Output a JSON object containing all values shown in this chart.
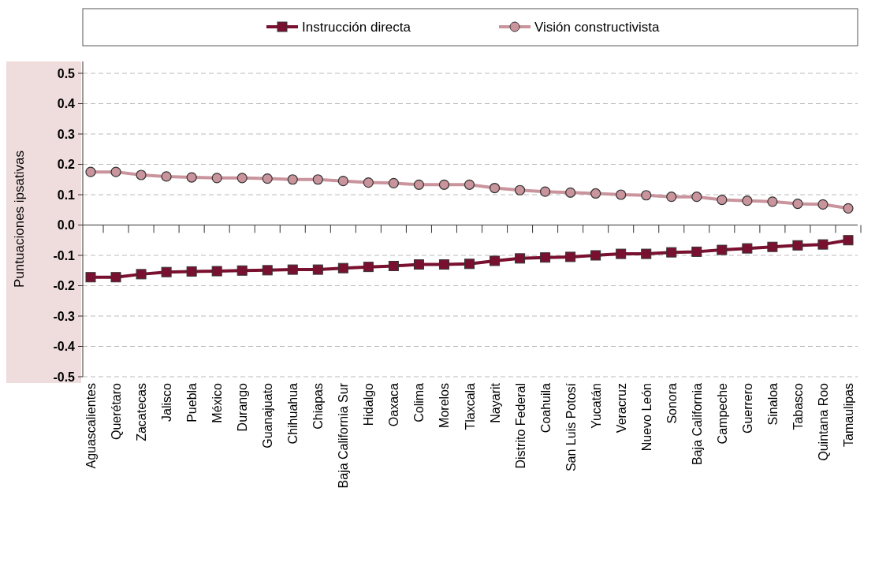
{
  "chart_data": {
    "type": "line",
    "ylabel": "Puntuaciones ipsativas",
    "categories": [
      "Aguascalientes",
      "Querétaro",
      "Zacatecas",
      "Jalisco",
      "Puebla",
      "México",
      "Durango",
      "Guanajuato",
      "Chihuahua",
      "Chiapas",
      "Baja California Sur",
      "Hidalgo",
      "Oaxaca",
      "Colima",
      "Morelos",
      "Tlaxcala",
      "Nayarit",
      "Distrito Federal",
      "Coahuila",
      "San Luis Potosí",
      "Yucatán",
      "Veracruz",
      "Nuevo León",
      "Sonora",
      "Baja California",
      "Campeche",
      "Guerrero",
      "Sinaloa",
      "Tabasco",
      "Quintana Roo",
      "Tamaulipas"
    ],
    "series": [
      {
        "name": "Instrucción directa",
        "color": "#7a1030",
        "marker": "square",
        "values": [
          -0.172,
          -0.172,
          -0.162,
          -0.155,
          -0.153,
          -0.152,
          -0.15,
          -0.149,
          -0.147,
          -0.147,
          -0.142,
          -0.138,
          -0.135,
          -0.13,
          -0.13,
          -0.128,
          -0.118,
          -0.11,
          -0.107,
          -0.105,
          -0.1,
          -0.095,
          -0.095,
          -0.09,
          -0.088,
          -0.082,
          -0.077,
          -0.072,
          -0.067,
          -0.064,
          -0.05
        ]
      },
      {
        "name": "Visión constructivista",
        "color": "#c9949c",
        "marker": "circle",
        "values": [
          0.175,
          0.175,
          0.165,
          0.16,
          0.157,
          0.155,
          0.155,
          0.153,
          0.15,
          0.15,
          0.145,
          0.14,
          0.138,
          0.133,
          0.133,
          0.133,
          0.122,
          0.115,
          0.11,
          0.107,
          0.104,
          0.1,
          0.098,
          0.093,
          0.093,
          0.083,
          0.08,
          0.077,
          0.07,
          0.068,
          0.055
        ]
      }
    ],
    "ylim": [
      -0.5,
      0.5
    ],
    "yticks": [
      {
        "value": -0.5,
        "label": "-0.5"
      },
      {
        "value": -0.4,
        "label": "-0.4"
      },
      {
        "value": -0.3,
        "label": "-0.3"
      },
      {
        "value": -0.2,
        "label": "-0.2"
      },
      {
        "value": -0.1,
        "label": "-0.1"
      },
      {
        "value": 0,
        "label": "0.0"
      },
      {
        "value": 0.1,
        "label": "0.1"
      },
      {
        "value": 0.2,
        "label": "0.2"
      },
      {
        "value": 0.3,
        "label": "0.3"
      },
      {
        "value": 0.4,
        "label": "0.4"
      },
      {
        "value": 0.5,
        "label": "0.5"
      }
    ],
    "grid": "y",
    "legend": "top",
    "line_style": "solid"
  }
}
